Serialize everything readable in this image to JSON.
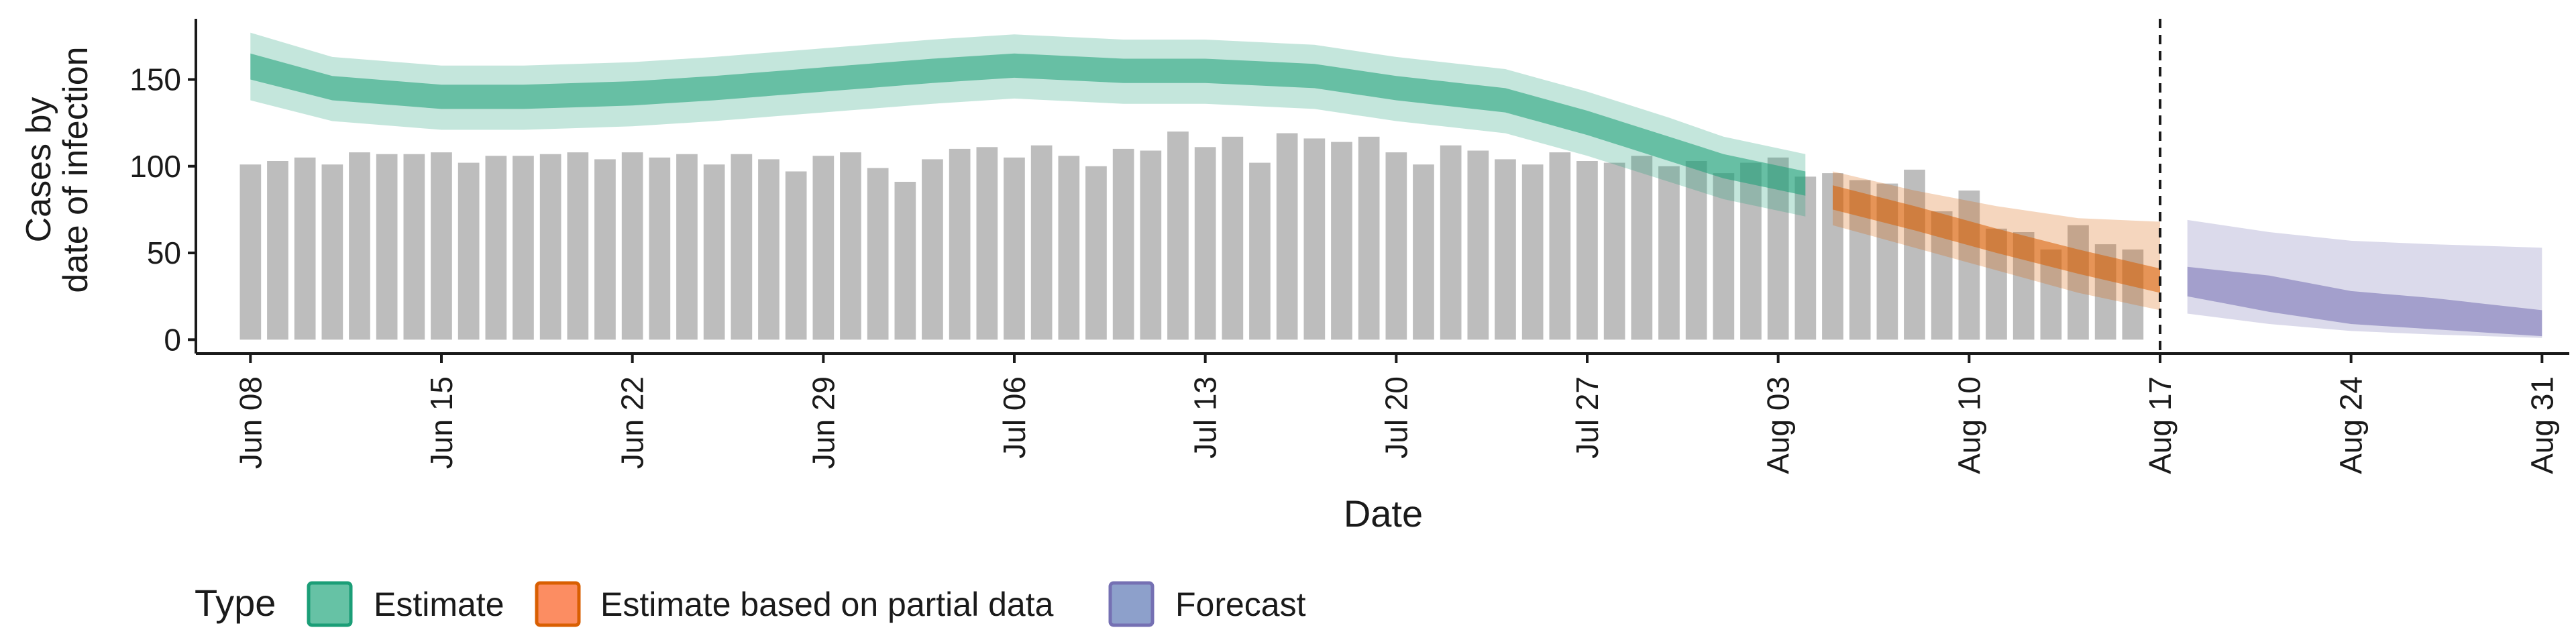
{
  "chart_data": {
    "type": "bar",
    "xlabel": "Date",
    "ylabel_lines": [
      "Cases by",
      "date of infection"
    ],
    "yticks": [
      0,
      50,
      100,
      150
    ],
    "ylim": [
      -8,
      185
    ],
    "xlim": [
      "2020-06-06",
      "2020-09-01"
    ],
    "xtick_labels": [
      "Jun 08",
      "Jun 15",
      "Jun 22",
      "Jun 29",
      "Jul 06",
      "Jul 13",
      "Jul 20",
      "Jul 27",
      "Aug 03",
      "Aug 10",
      "Aug 17",
      "Aug 24",
      "Aug 31"
    ],
    "xtick_dates": [
      "2020-06-08",
      "2020-06-15",
      "2020-06-22",
      "2020-06-29",
      "2020-07-06",
      "2020-07-13",
      "2020-07-20",
      "2020-07-27",
      "2020-08-03",
      "2020-08-10",
      "2020-08-17",
      "2020-08-24",
      "2020-08-31"
    ],
    "vline_date": "2020-08-17",
    "bars": {
      "start_date": "2020-06-08",
      "color": "#bdbdbd",
      "values": [
        101,
        103,
        105,
        101,
        108,
        107,
        107,
        108,
        102,
        106,
        106,
        107,
        108,
        104,
        108,
        105,
        107,
        101,
        107,
        104,
        97,
        106,
        108,
        99,
        91,
        104,
        110,
        111,
        105,
        112,
        106,
        100,
        110,
        109,
        120,
        111,
        117,
        102,
        119,
        116,
        114,
        117,
        108,
        101,
        112,
        109,
        104,
        101,
        108,
        103,
        102,
        106,
        100,
        103,
        96,
        102,
        105,
        94,
        96,
        92,
        90,
        98,
        74,
        86,
        64,
        62,
        52,
        66,
        55,
        52
      ]
    },
    "series": [
      {
        "name": "Estimate",
        "color": "#1b9e77",
        "fill": "#66c2a5",
        "x": [
          "2020-06-08",
          "2020-06-11",
          "2020-06-15",
          "2020-06-18",
          "2020-06-22",
          "2020-06-25",
          "2020-06-29",
          "2020-07-03",
          "2020-07-06",
          "2020-07-10",
          "2020-07-13",
          "2020-07-17",
          "2020-07-20",
          "2020-07-24",
          "2020-07-27",
          "2020-07-30",
          "2020-08-01",
          "2020-08-04"
        ],
        "median": [
          157,
          145,
          140,
          140,
          142,
          145,
          150,
          155,
          158,
          155,
          155,
          152,
          145,
          138,
          125,
          110,
          100,
          90
        ],
        "inner_lower": [
          150,
          138,
          133,
          133,
          135,
          138,
          143,
          148,
          151,
          148,
          148,
          145,
          138,
          131,
          118,
          103,
          93,
          83
        ],
        "inner_upper": [
          165,
          152,
          147,
          147,
          149,
          152,
          157,
          162,
          165,
          162,
          162,
          159,
          152,
          145,
          132,
          117,
          107,
          97
        ],
        "outer_lower": [
          138,
          126,
          121,
          121,
          123,
          126,
          131,
          136,
          139,
          136,
          136,
          133,
          126,
          119,
          106,
          91,
          81,
          71
        ],
        "outer_upper": [
          177,
          163,
          158,
          158,
          160,
          163,
          168,
          173,
          176,
          173,
          173,
          170,
          163,
          156,
          143,
          128,
          117,
          107
        ]
      },
      {
        "name": "Estimate based on partial data",
        "color": "#d95f02",
        "fill": "#fc8d62",
        "x": [
          "2020-08-05",
          "2020-08-08",
          "2020-08-11",
          "2020-08-14",
          "2020-08-17"
        ],
        "median": [
          82,
          70,
          57,
          45,
          34
        ],
        "inner_lower": [
          75,
          63,
          50,
          38,
          27
        ],
        "inner_upper": [
          89,
          77,
          64,
          52,
          41
        ],
        "outer_lower": [
          66,
          53,
          40,
          27,
          17
        ],
        "outer_upper": [
          97,
          86,
          77,
          70,
          68
        ]
      },
      {
        "name": "Forecast",
        "color": "#7570b3",
        "fill": "#8da0cb",
        "x": [
          "2020-08-18",
          "2020-08-21",
          "2020-08-24",
          "2020-08-27",
          "2020-08-31"
        ],
        "median": [
          34,
          28,
          20,
          15,
          10
        ],
        "inner_lower": [
          25,
          16,
          9,
          6,
          2
        ],
        "inner_upper": [
          42,
          37,
          28,
          24,
          17
        ],
        "outer_lower": [
          15,
          9,
          5,
          3,
          1
        ],
        "outer_upper": [
          69,
          62,
          57,
          55,
          53
        ]
      }
    ],
    "legend": {
      "title": "Type",
      "position": "bottom-left",
      "items": [
        {
          "label": "Estimate",
          "fill": "#66c2a5",
          "border": "#1b9e77"
        },
        {
          "label": "Estimate based on partial data",
          "fill": "#fc8d62",
          "border": "#d95f02"
        },
        {
          "label": "Forecast",
          "fill": "#8da0cb",
          "border": "#7570b3"
        }
      ]
    }
  }
}
